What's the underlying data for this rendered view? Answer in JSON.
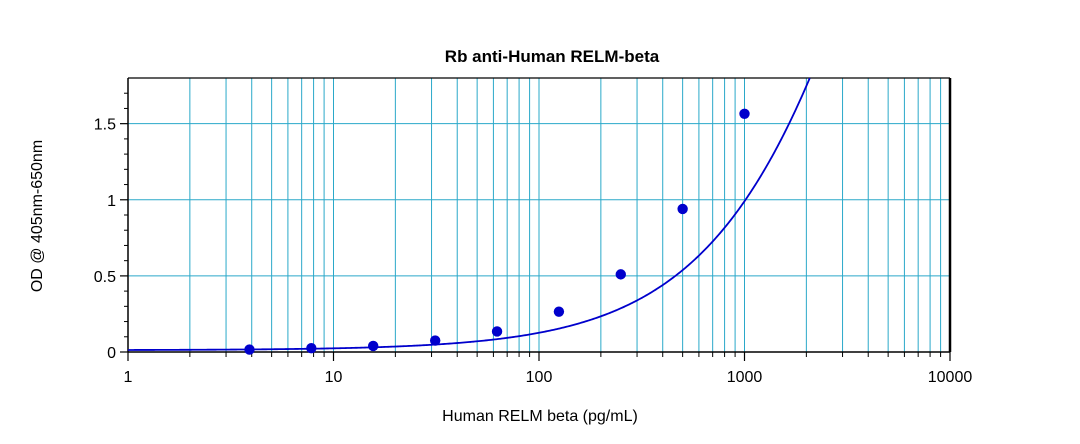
{
  "chart_data": {
    "type": "scatter",
    "title": "Rb anti-Human RELM-beta",
    "xlabel": "Human RELM beta (pg/mL)",
    "ylabel": "OD @ 405nm-650nm",
    "xscale": "log",
    "xlim": [
      1,
      10000
    ],
    "ylim": [
      0,
      1.8
    ],
    "x_ticks": [
      1,
      10,
      100,
      1000,
      10000
    ],
    "x_tick_labels": [
      "1",
      "10",
      "100",
      "1000",
      "10000"
    ],
    "y_ticks": [
      0,
      0.5,
      1,
      1.5
    ],
    "y_tick_labels": [
      "0",
      "0.5",
      "1",
      "1.5"
    ],
    "grid": true,
    "legend": "none",
    "points": {
      "x": [
        3.9,
        7.8,
        15.6,
        31.25,
        62.5,
        125,
        250,
        500,
        1000
      ],
      "y": [
        0.016,
        0.025,
        0.04,
        0.075,
        0.135,
        0.265,
        0.51,
        0.94,
        1.565
      ]
    },
    "fit_curve": {
      "type": "4PL",
      "A": 0.012,
      "D": 8.5,
      "C": 8000,
      "B": 0.98
    },
    "colors": {
      "grid": "#2aa8c9",
      "series": "#0000cc",
      "axis": "#000000",
      "background": "#ffffff"
    }
  }
}
